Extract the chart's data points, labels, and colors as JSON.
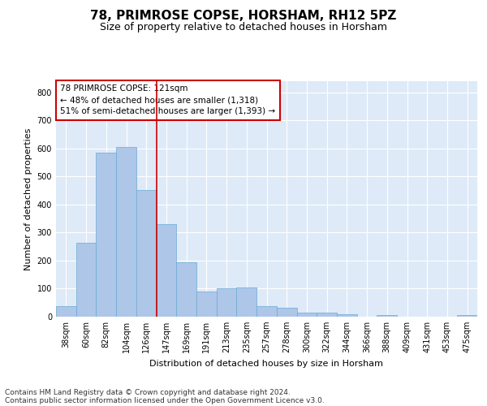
{
  "title1": "78, PRIMROSE COPSE, HORSHAM, RH12 5PZ",
  "title2": "Size of property relative to detached houses in Horsham",
  "xlabel": "Distribution of detached houses by size in Horsham",
  "ylabel": "Number of detached properties",
  "categories": [
    "38sqm",
    "60sqm",
    "82sqm",
    "104sqm",
    "126sqm",
    "147sqm",
    "169sqm",
    "191sqm",
    "213sqm",
    "235sqm",
    "257sqm",
    "278sqm",
    "300sqm",
    "322sqm",
    "344sqm",
    "366sqm",
    "388sqm",
    "409sqm",
    "431sqm",
    "453sqm",
    "475sqm"
  ],
  "values": [
    38,
    265,
    585,
    605,
    452,
    330,
    195,
    90,
    100,
    105,
    38,
    33,
    15,
    15,
    10,
    0,
    7,
    0,
    0,
    0,
    7
  ],
  "bar_color": "#aec6e8",
  "bar_edge_color": "#6aaad4",
  "background_color": "#deeaf8",
  "grid_color": "#ffffff",
  "vline_x": 4.5,
  "vline_color": "#cc0000",
  "annotation_line1": "78 PRIMROSE COPSE: 121sqm",
  "annotation_line2": "← 48% of detached houses are smaller (1,318)",
  "annotation_line3": "51% of semi-detached houses are larger (1,393) →",
  "annotation_box_color": "#cc0000",
  "ylim": [
    0,
    840
  ],
  "yticks": [
    0,
    100,
    200,
    300,
    400,
    500,
    600,
    700,
    800
  ],
  "footer_line1": "Contains HM Land Registry data © Crown copyright and database right 2024.",
  "footer_line2": "Contains public sector information licensed under the Open Government Licence v3.0.",
  "title1_fontsize": 11,
  "title2_fontsize": 9,
  "axis_label_fontsize": 8,
  "tick_fontsize": 7,
  "annotation_fontsize": 7.5,
  "footer_fontsize": 6.5
}
